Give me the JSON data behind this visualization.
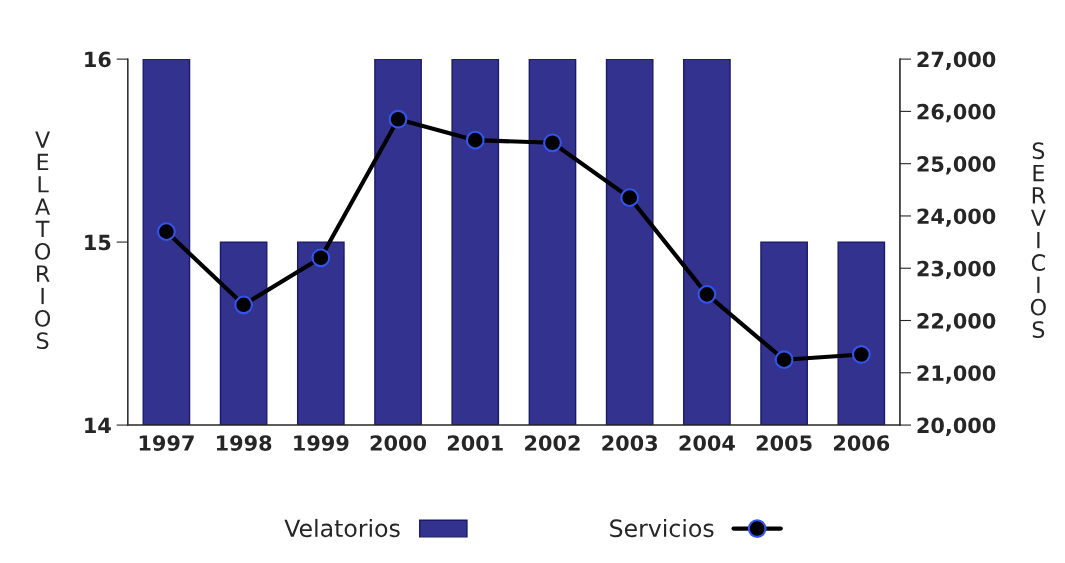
{
  "chart_data": {
    "type": "bar",
    "categories": [
      "1997",
      "1998",
      "1999",
      "2000",
      "2001",
      "2002",
      "2003",
      "2004",
      "2005",
      "2006"
    ],
    "ylabel": "VELATORIOS",
    "y2label": "SERVICIOS",
    "series": [
      {
        "name": "Velatorios",
        "color": "#33338f",
        "values": [
          16,
          15,
          15,
          16,
          16,
          16,
          16,
          16,
          15,
          15
        ]
      },
      {
        "name": "Servicios",
        "type": "line",
        "axis": "y2",
        "color": "#000000",
        "marker": "circle",
        "values": [
          23700,
          22300,
          23200,
          25850,
          25450,
          25400,
          24350,
          22500,
          21250,
          21350
        ]
      }
    ],
    "ylim": [
      14,
      16
    ],
    "yticks": [
      14,
      15,
      16
    ],
    "y2lim": [
      20000,
      27000
    ],
    "y2ticks": [
      {
        "value": 20000,
        "label": "20,000"
      },
      {
        "value": 21000,
        "label": "21,000"
      },
      {
        "value": 22000,
        "label": "22,000"
      },
      {
        "value": 23000,
        "label": "23,000"
      },
      {
        "value": 24000,
        "label": "24,000"
      },
      {
        "value": 25000,
        "label": "25,000"
      },
      {
        "value": 26000,
        "label": "26,000"
      },
      {
        "value": 27000,
        "label": "27,000"
      }
    ],
    "legend": "bottom",
    "grid": false
  }
}
